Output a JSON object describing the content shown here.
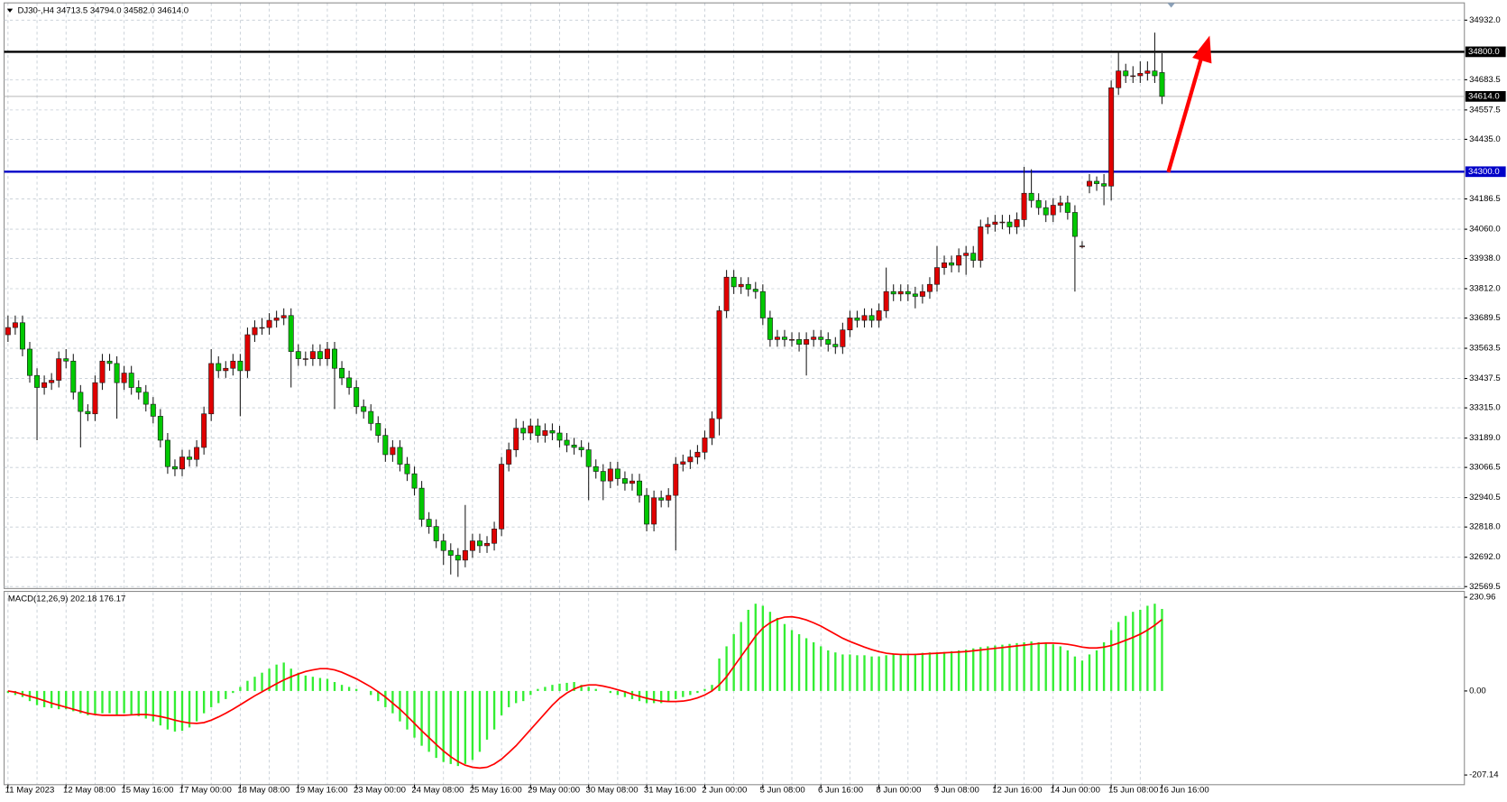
{
  "chart_data": {
    "type": "candlestick",
    "title": "DJ30-,H4  34713.5 34794.0 34582.0 34614.0",
    "up_color": "#e00000",
    "down_color": "#00c800",
    "grid": true,
    "ylim": [
      32561.5,
      35004
    ],
    "yticks": [
      {
        "value": 34932,
        "label": "34932.0"
      },
      {
        "value": 34683.5,
        "label": "34683.5"
      },
      {
        "value": 34557.5,
        "label": "34557.5"
      },
      {
        "value": 34435,
        "label": "34435.0"
      },
      {
        "value": 34186.5,
        "label": "34186.5"
      },
      {
        "value": 34060,
        "label": "34060.0"
      },
      {
        "value": 33938,
        "label": "33938.0"
      },
      {
        "value": 33812,
        "label": "33812.0"
      },
      {
        "value": 33689.5,
        "label": "33689.5"
      },
      {
        "value": 33563.5,
        "label": "33563.5"
      },
      {
        "value": 33437.5,
        "label": "33437.5"
      },
      {
        "value": 33315,
        "label": "33315.0"
      },
      {
        "value": 33189,
        "label": "33189.0"
      },
      {
        "value": 33066.5,
        "label": "33066.5"
      },
      {
        "value": 32940.5,
        "label": "32940.5"
      },
      {
        "value": 32818,
        "label": "32818.0"
      },
      {
        "value": 32692,
        "label": "32692.0"
      },
      {
        "value": 32569.5,
        "label": "32569.5"
      }
    ],
    "hlines": [
      {
        "value": 34800,
        "label": "34800.0",
        "color": "#000000",
        "label_color": "#000000"
      },
      {
        "value": 34614,
        "label": "34614.0",
        "color": "#b8b8b8",
        "label_color": "#000000"
      },
      {
        "value": 34300,
        "label": "34300.0",
        "color": "#0000c8",
        "label_color": "#0000c8"
      }
    ],
    "categories": [
      "11 May 2023",
      "12 May 08:00",
      "15 May 16:00",
      "17 May 00:00",
      "18 May 08:00",
      "19 May 16:00",
      "23 May 00:00",
      "24 May 08:00",
      "25 May 16:00",
      "29 May 00:00",
      "30 May 08:00",
      "31 May 16:00",
      "2 Jun 00:00",
      "5 Jun 08:00",
      "6 Jun 16:00",
      "8 Jun 00:00",
      "9 Jun 08:00",
      "12 Jun 16:00",
      "14 Jun 00:00",
      "15 Jun 08:00",
      "16 Jun 16:00"
    ],
    "ohlc": [
      [
        33620,
        33700,
        33590,
        33650
      ],
      [
        33650,
        33700,
        33620,
        33670
      ],
      [
        33670,
        33700,
        33530,
        33560
      ],
      [
        33560,
        33590,
        33420,
        33450
      ],
      [
        33450,
        33480,
        33180,
        33400
      ],
      [
        33400,
        33450,
        33370,
        33420
      ],
      [
        33420,
        33460,
        33390,
        33430
      ],
      [
        33430,
        33550,
        33400,
        33520
      ],
      [
        33520,
        33560,
        33480,
        33510
      ],
      [
        33510,
        33540,
        33350,
        33380
      ],
      [
        33380,
        33410,
        33150,
        33300
      ],
      [
        33300,
        33330,
        33260,
        33290
      ],
      [
        33290,
        33450,
        33260,
        33420
      ],
      [
        33420,
        33540,
        33390,
        33510
      ],
      [
        33510,
        33540,
        33470,
        33500
      ],
      [
        33500,
        33530,
        33270,
        33420
      ],
      [
        33420,
        33490,
        33390,
        33460
      ],
      [
        33460,
        33490,
        33370,
        33400
      ],
      [
        33400,
        33430,
        33350,
        33380
      ],
      [
        33380,
        33410,
        33300,
        33330
      ],
      [
        33330,
        33360,
        33250,
        33280
      ],
      [
        33280,
        33310,
        33150,
        33180
      ],
      [
        33180,
        33210,
        33040,
        33070
      ],
      [
        33070,
        33100,
        33030,
        33060
      ],
      [
        33060,
        33140,
        33030,
        33110
      ],
      [
        33110,
        33140,
        33070,
        33100
      ],
      [
        33100,
        33180,
        33070,
        33150
      ],
      [
        33150,
        33320,
        33120,
        33290
      ],
      [
        33290,
        33560,
        33260,
        33500
      ],
      [
        33500,
        33530,
        33440,
        33470
      ],
      [
        33470,
        33510,
        33440,
        33480
      ],
      [
        33480,
        33540,
        33450,
        33510
      ],
      [
        33510,
        33540,
        33280,
        33470
      ],
      [
        33470,
        33650,
        33440,
        33620
      ],
      [
        33620,
        33680,
        33590,
        33650
      ],
      [
        33650,
        33690,
        33620,
        33650
      ],
      [
        33650,
        33710,
        33620,
        33680
      ],
      [
        33680,
        33720,
        33650,
        33690
      ],
      [
        33690,
        33730,
        33660,
        33700
      ],
      [
        33700,
        33730,
        33400,
        33550
      ],
      [
        33550,
        33580,
        33490,
        33520
      ],
      [
        33520,
        33550,
        33490,
        33520
      ],
      [
        33520,
        33580,
        33490,
        33550
      ],
      [
        33550,
        33580,
        33490,
        33520
      ],
      [
        33520,
        33590,
        33490,
        33560
      ],
      [
        33560,
        33590,
        33310,
        33480
      ],
      [
        33480,
        33510,
        33410,
        33440
      ],
      [
        33440,
        33470,
        33370,
        33400
      ],
      [
        33400,
        33430,
        33290,
        33320
      ],
      [
        33320,
        33350,
        33270,
        33300
      ],
      [
        33300,
        33330,
        33220,
        33250
      ],
      [
        33250,
        33280,
        33170,
        33200
      ],
      [
        33200,
        33230,
        33090,
        33120
      ],
      [
        33120,
        33180,
        33090,
        33150
      ],
      [
        33150,
        33180,
        33050,
        33080
      ],
      [
        33080,
        33110,
        33010,
        33040
      ],
      [
        33040,
        33070,
        32950,
        32980
      ],
      [
        32980,
        33010,
        32820,
        32850
      ],
      [
        32850,
        32880,
        32790,
        32820
      ],
      [
        32820,
        32850,
        32730,
        32760
      ],
      [
        32760,
        32790,
        32660,
        32720
      ],
      [
        32720,
        32750,
        32620,
        32700
      ],
      [
        32700,
        32730,
        32610,
        32680
      ],
      [
        32680,
        32910,
        32650,
        32720
      ],
      [
        32720,
        32790,
        32690,
        32760
      ],
      [
        32760,
        32790,
        32710,
        32740
      ],
      [
        32740,
        32780,
        32710,
        32750
      ],
      [
        32750,
        32840,
        32720,
        32810
      ],
      [
        32810,
        33110,
        32780,
        33080
      ],
      [
        33080,
        33170,
        33050,
        33140
      ],
      [
        33140,
        33270,
        33110,
        33230
      ],
      [
        33230,
        33260,
        33180,
        33210
      ],
      [
        33210,
        33270,
        33180,
        33240
      ],
      [
        33240,
        33270,
        33170,
        33200
      ],
      [
        33200,
        33250,
        33170,
        33220
      ],
      [
        33220,
        33250,
        33180,
        33210
      ],
      [
        33210,
        33240,
        33150,
        33180
      ],
      [
        33180,
        33210,
        33130,
        33160
      ],
      [
        33160,
        33190,
        33120,
        33150
      ],
      [
        33150,
        33180,
        33110,
        33140
      ],
      [
        33140,
        33170,
        32930,
        33070
      ],
      [
        33070,
        33100,
        33020,
        33050
      ],
      [
        33050,
        33080,
        32930,
        33010
      ],
      [
        33010,
        33090,
        32980,
        33060
      ],
      [
        33060,
        33090,
        32990,
        33020
      ],
      [
        33020,
        33050,
        32970,
        33000
      ],
      [
        33000,
        33040,
        32970,
        33010
      ],
      [
        33010,
        33040,
        32920,
        32950
      ],
      [
        32950,
        32980,
        32800,
        32830
      ],
      [
        32830,
        32970,
        32800,
        32940
      ],
      [
        32940,
        32970,
        32900,
        32930
      ],
      [
        32930,
        32980,
        32900,
        32950
      ],
      [
        32950,
        33110,
        32720,
        33080
      ],
      [
        33080,
        33120,
        33050,
        33090
      ],
      [
        33090,
        33140,
        33060,
        33110
      ],
      [
        33110,
        33160,
        33080,
        33130
      ],
      [
        33130,
        33220,
        33100,
        33190
      ],
      [
        33190,
        33300,
        33160,
        33270
      ],
      [
        33270,
        33740,
        33200,
        33720
      ],
      [
        33720,
        33890,
        33690,
        33860
      ],
      [
        33860,
        33890,
        33790,
        33820
      ],
      [
        33820,
        33860,
        33790,
        33830
      ],
      [
        33830,
        33860,
        33780,
        33810
      ],
      [
        33810,
        33840,
        33770,
        33800
      ],
      [
        33800,
        33830,
        33660,
        33690
      ],
      [
        33690,
        33720,
        33570,
        33600
      ],
      [
        33600,
        33640,
        33570,
        33610
      ],
      [
        33610,
        33640,
        33570,
        33600
      ],
      [
        33600,
        33630,
        33570,
        33600
      ],
      [
        33600,
        33630,
        33550,
        33580
      ],
      [
        33580,
        33630,
        33450,
        33600
      ],
      [
        33600,
        33640,
        33570,
        33610
      ],
      [
        33610,
        33640,
        33570,
        33600
      ],
      [
        33600,
        33630,
        33550,
        33580
      ],
      [
        33580,
        33610,
        33540,
        33570
      ],
      [
        33570,
        33670,
        33540,
        33640
      ],
      [
        33640,
        33720,
        33610,
        33690
      ],
      [
        33690,
        33720,
        33650,
        33680
      ],
      [
        33680,
        33730,
        33650,
        33700
      ],
      [
        33700,
        33730,
        33650,
        33680
      ],
      [
        33680,
        33750,
        33650,
        33720
      ],
      [
        33720,
        33900,
        33690,
        33800
      ],
      [
        33800,
        33830,
        33760,
        33790
      ],
      [
        33790,
        33830,
        33760,
        33800
      ],
      [
        33800,
        33830,
        33760,
        33790
      ],
      [
        33790,
        33820,
        33730,
        33780
      ],
      [
        33780,
        33830,
        33750,
        33800
      ],
      [
        33800,
        33860,
        33770,
        33830
      ],
      [
        33830,
        33990,
        33800,
        33900
      ],
      [
        33900,
        33950,
        33870,
        33920
      ],
      [
        33920,
        33950,
        33880,
        33910
      ],
      [
        33910,
        33980,
        33880,
        33950
      ],
      [
        33950,
        33990,
        33870,
        33960
      ],
      [
        33960,
        33990,
        33900,
        33930
      ],
      [
        33930,
        34100,
        33900,
        34070
      ],
      [
        34070,
        34110,
        34040,
        34080
      ],
      [
        34080,
        34120,
        34050,
        34090
      ],
      [
        34090,
        34120,
        34060,
        34090
      ],
      [
        34090,
        34120,
        34040,
        34070
      ],
      [
        34070,
        34130,
        34040,
        34100
      ],
      [
        34100,
        34320,
        34070,
        34210
      ],
      [
        34210,
        34310,
        34150,
        34180
      ],
      [
        34180,
        34210,
        34120,
        34150
      ],
      [
        34150,
        34180,
        34090,
        34120
      ],
      [
        34120,
        34190,
        34090,
        34160
      ],
      [
        34160,
        34200,
        34130,
        34170
      ],
      [
        34170,
        34200,
        34100,
        34130
      ],
      [
        34130,
        34160,
        33800,
        34030
      ],
      [
        33990,
        34010,
        33980,
        33990
      ],
      [
        34240,
        34290,
        34210,
        34260
      ],
      [
        34260,
        34280,
        34220,
        34250
      ],
      [
        34250,
        34290,
        34160,
        34240
      ],
      [
        34240,
        34680,
        34180,
        34650
      ],
      [
        34650,
        34800,
        34620,
        34720
      ],
      [
        34720,
        34750,
        34670,
        34700
      ],
      [
        34700,
        34740,
        34670,
        34700
      ],
      [
        34700,
        34760,
        34670,
        34710
      ],
      [
        34710,
        34760,
        34680,
        34720
      ],
      [
        34720,
        34880,
        34670,
        34700
      ],
      [
        34713.5,
        34794,
        34582,
        34614
      ]
    ],
    "macd": {
      "title": "MACD(12,26,9) 202.18 176.17",
      "histogram_color": "#33ee33",
      "signal_color": "#ff0000",
      "ylim": [
        -231,
        243
      ],
      "yticks": [
        {
          "value": 230.96,
          "label": "230.96"
        },
        {
          "value": 0,
          "label": "0.00"
        },
        {
          "value": -207.14,
          "label": "-207.14"
        }
      ],
      "histogram": [
        -5,
        -10,
        -15,
        -25,
        -35,
        -40,
        -42,
        -45,
        -45,
        -50,
        -55,
        -60,
        -58,
        -55,
        -55,
        -58,
        -55,
        -58,
        -62,
        -68,
        -75,
        -85,
        -95,
        -100,
        -98,
        -90,
        -75,
        -55,
        -40,
        -30,
        -20,
        -5,
        10,
        25,
        35,
        45,
        55,
        65,
        70,
        55,
        45,
        38,
        35,
        32,
        30,
        22,
        15,
        10,
        5,
        0,
        -10,
        -25,
        -40,
        -55,
        -75,
        -95,
        -115,
        -135,
        -150,
        -165,
        -175,
        -180,
        -185,
        -180,
        -170,
        -150,
        -120,
        -95,
        -60,
        -40,
        -30,
        -25,
        -10,
        5,
        10,
        15,
        18,
        20,
        22,
        15,
        10,
        5,
        0,
        -5,
        -10,
        -15,
        -20,
        -25,
        -30,
        -30,
        -30,
        -25,
        -20,
        -15,
        -10,
        -5,
        5,
        15,
        80,
        110,
        140,
        170,
        200,
        215,
        210,
        195,
        180,
        165,
        150,
        140,
        130,
        120,
        110,
        100,
        95,
        90,
        90,
        88,
        88,
        85,
        85,
        88,
        90,
        90,
        92,
        92,
        94,
        95,
        95,
        96,
        98,
        100,
        102,
        105,
        108,
        110,
        112,
        114,
        116,
        118,
        120,
        122,
        120,
        118,
        115,
        110,
        100,
        85,
        75,
        90,
        100,
        120,
        150,
        170,
        185,
        195,
        200,
        210,
        215,
        202.18
      ],
      "signal": [
        0,
        -3,
        -8,
        -13,
        -18,
        -24,
        -30,
        -35,
        -40,
        -45,
        -50,
        -55,
        -58,
        -60,
        -60,
        -60,
        -60,
        -59,
        -58,
        -58,
        -60,
        -63,
        -67,
        -72,
        -76,
        -79,
        -80,
        -78,
        -72,
        -64,
        -55,
        -45,
        -34,
        -23,
        -12,
        -2,
        8,
        18,
        27,
        35,
        42,
        48,
        52,
        55,
        55,
        52,
        46,
        38,
        30,
        20,
        10,
        -2,
        -15,
        -30,
        -45,
        -62,
        -80,
        -98,
        -115,
        -132,
        -148,
        -162,
        -174,
        -183,
        -188,
        -190,
        -188,
        -180,
        -168,
        -152,
        -135,
        -115,
        -95,
        -75,
        -55,
        -35,
        -18,
        -5,
        5,
        12,
        15,
        15,
        12,
        8,
        3,
        -2,
        -8,
        -13,
        -18,
        -22,
        -25,
        -26,
        -26,
        -25,
        -22,
        -17,
        -10,
        0,
        15,
        35,
        60,
        85,
        110,
        135,
        155,
        168,
        177,
        182,
        183,
        180,
        175,
        168,
        160,
        150,
        140,
        130,
        122,
        115,
        108,
        102,
        97,
        93,
        91,
        90,
        90,
        90,
        91,
        92,
        93,
        94,
        95,
        96,
        97,
        99,
        101,
        103,
        105,
        107,
        109,
        111,
        113,
        115,
        117,
        118,
        118,
        117,
        115,
        112,
        108,
        106,
        106,
        108,
        112,
        118,
        125,
        132,
        140,
        150,
        162,
        176.17
      ]
    }
  }
}
